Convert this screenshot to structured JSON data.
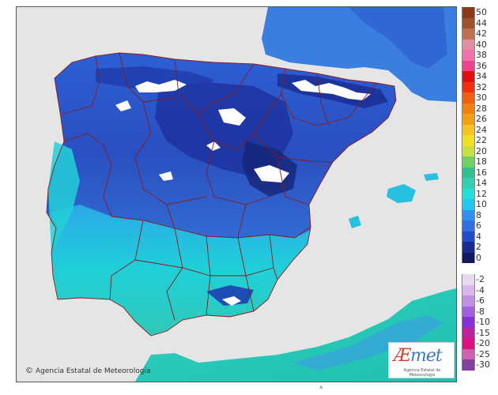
{
  "credit": {
    "symbol": "©",
    "text": "Agencia Estatal de Meteorología"
  },
  "logo": {
    "word_first": "Æ",
    "word_rest": "met",
    "subtitle": "Agencia Estatal de Meteorología"
  },
  "legend": {
    "positive": [
      {
        "label": "50",
        "color": "#8b3a1a"
      },
      {
        "label": "44",
        "color": "#a0522d"
      },
      {
        "label": "42",
        "color": "#c07050"
      },
      {
        "label": "40",
        "color": "#e090a0"
      },
      {
        "label": "38",
        "color": "#f070b0"
      },
      {
        "label": "36",
        "color": "#f04090"
      },
      {
        "label": "34",
        "color": "#e01010"
      },
      {
        "label": "32",
        "color": "#f03010"
      },
      {
        "label": "30",
        "color": "#f06010"
      },
      {
        "label": "28",
        "color": "#f08010"
      },
      {
        "label": "26",
        "color": "#f0a010"
      },
      {
        "label": "24",
        "color": "#f8c020"
      },
      {
        "label": "22",
        "color": "#f0e020"
      },
      {
        "label": "20",
        "color": "#c8e040"
      },
      {
        "label": "18",
        "color": "#70d060"
      },
      {
        "label": "16",
        "color": "#30c090"
      },
      {
        "label": "14",
        "color": "#30d0b0"
      },
      {
        "label": "12",
        "color": "#20e0d8"
      },
      {
        "label": "10",
        "color": "#20c8f0"
      },
      {
        "label": "8",
        "color": "#3090f0"
      },
      {
        "label": "6",
        "color": "#3070e0"
      },
      {
        "label": "4",
        "color": "#2050c8"
      },
      {
        "label": "2",
        "color": "#1a2a90"
      },
      {
        "label": "0",
        "color": "#101a60"
      }
    ],
    "negative": [
      {
        "label": "-2",
        "color": "#e8d8f0"
      },
      {
        "label": "-4",
        "color": "#d8b8ec"
      },
      {
        "label": "-6",
        "color": "#c090e8"
      },
      {
        "label": "-8",
        "color": "#a060e0"
      },
      {
        "label": "-10",
        "color": "#8830d8"
      },
      {
        "label": "-15",
        "color": "#c020a0"
      },
      {
        "label": "-20",
        "color": "#e01080"
      },
      {
        "label": "-25",
        "color": "#d060b0"
      },
      {
        "label": "-30",
        "color": "#8040a0"
      }
    ]
  },
  "colors": {
    "sea": "#e5e5e5",
    "borders": "#8a1a1a",
    "snow": "#ffffff"
  }
}
